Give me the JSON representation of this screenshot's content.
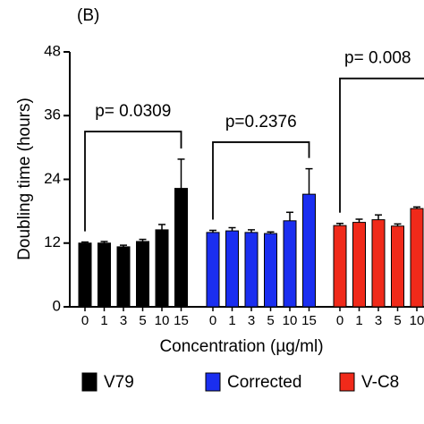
{
  "chart_data": {
    "type": "bar",
    "panel_label": "(B)",
    "y_label": "Doubling time (hours)",
    "x_label": "Concentration (µg/ml)",
    "ylim": [
      0,
      48
    ],
    "yticks": [
      0,
      12,
      24,
      36,
      48
    ],
    "series": [
      {
        "name": "V79",
        "color": "#000000",
        "categories": [
          "0",
          "1",
          "3",
          "5",
          "10",
          "15"
        ],
        "values": [
          12,
          12,
          11.3,
          12.3,
          14.5,
          22.3
        ],
        "errors": [
          0.2,
          0.3,
          0.3,
          0.4,
          1.0,
          5.5
        ]
      },
      {
        "name": "Corrected",
        "color": "#1a2ef0",
        "categories": [
          "0",
          "1",
          "3",
          "5",
          "10",
          "15"
        ],
        "values": [
          14,
          14.3,
          14,
          13.8,
          16.2,
          21.2
        ],
        "errors": [
          0.4,
          0.6,
          0.5,
          0.3,
          1.6,
          4.8
        ]
      },
      {
        "name": "V-C8",
        "color": "#f02a1a",
        "categories": [
          "0",
          "1",
          "3",
          "5",
          "10"
        ],
        "values": [
          15.3,
          15.9,
          16.4,
          15.2,
          18.5
        ],
        "errors": [
          0.4,
          0.6,
          0.9,
          0.4,
          0.3
        ]
      }
    ],
    "annotations": [
      {
        "text": "p= 0.0309",
        "series": 0,
        "y": 33
      },
      {
        "text": "p=0.2376",
        "series": 1,
        "y": 31
      },
      {
        "text": "p= 0.008",
        "series": 2,
        "y": 43
      }
    ]
  }
}
